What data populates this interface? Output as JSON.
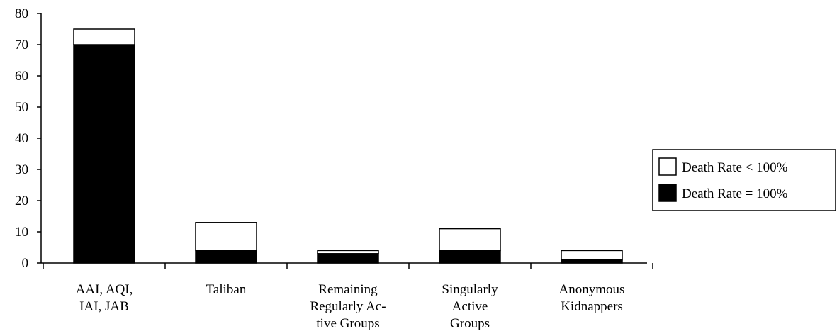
{
  "chart_data": {
    "type": "bar",
    "stacked": true,
    "categories": [
      [
        "AAI, AQI,",
        "IAI, JAB"
      ],
      [
        "Taliban"
      ],
      [
        "Remaining",
        "Regularly Ac-",
        "tive Groups"
      ],
      [
        "Singularly",
        "Active",
        "Groups"
      ],
      [
        "Anonymous",
        "Kidnappers"
      ]
    ],
    "series": [
      {
        "name": "Death Rate = 100%",
        "values": [
          70,
          4,
          3,
          4,
          1
        ],
        "color": "#000000"
      },
      {
        "name": "Death Rate < 100%",
        "values": [
          5,
          9,
          1,
          7,
          3
        ],
        "color": "#ffffff"
      }
    ],
    "legend_order": [
      1,
      0
    ],
    "legend_position": "right",
    "ylim": [
      0,
      80
    ],
    "yticks": [
      0,
      10,
      20,
      30,
      40,
      50,
      60,
      70,
      80
    ],
    "title": "",
    "xlabel": "",
    "ylabel": "",
    "grid": false
  }
}
